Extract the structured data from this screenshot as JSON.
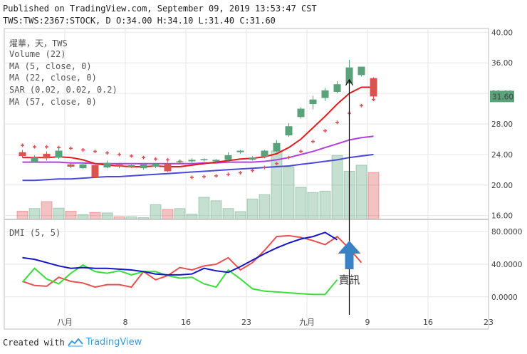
{
  "header": {
    "published": "Published on TradingView.com, September 09, 2019 13:53:47 CST",
    "symbol_line": "TWS:TWS:2367:STOCK, D O:34.00 H:34.10 L:31.40 C:31.60"
  },
  "legend": {
    "stock": "燿華，天，TWS",
    "volume": "Volume (22)",
    "ma5": "MA (5, close, 0)",
    "ma22": "MA (22, close, 0)",
    "sar": "SAR (0.02, 0.02, 0.2)",
    "ma57": "MA (57, close, 0)",
    "dmi": "DMI (5, 5)"
  },
  "annotation": {
    "text": "賣訊"
  },
  "footer": {
    "created_with": "Created with",
    "brand": "TradingView"
  },
  "colors": {
    "up": "#59a27a",
    "down": "#d9534f",
    "ma5": "#e31a1c",
    "ma22": "#b041e0",
    "ma57": "#4a4ad8",
    "sar": "#e0505a",
    "dmi_plus": "#e8504f",
    "dmi_minus": "#3cdc3c",
    "adx": "#1515c8",
    "arrow": "#3b82c4",
    "grid": "#e6e6e6",
    "last_price": "#59a27a"
  },
  "chart_data": [
    {
      "type": "candlestick",
      "title": "燿華，天，TWS",
      "ylim": [
        15.5,
        40.5
      ],
      "yticks": [
        16,
        20,
        24,
        28,
        32,
        36,
        40
      ],
      "ytick_labels": [
        "16.00",
        "20.00",
        "24.00",
        "28.00",
        "32.00",
        "36.00",
        "40.00"
      ],
      "last_price_label": "31.60",
      "last_price": 31.6,
      "xlim": [
        -1.5,
        38.5
      ],
      "xticks": [
        {
          "i": 3.5,
          "label": "八月"
        },
        {
          "i": 8.5,
          "label": "8"
        },
        {
          "i": 13.5,
          "label": "16"
        },
        {
          "i": 18.5,
          "label": "23"
        },
        {
          "i": 23.5,
          "label": "九月"
        },
        {
          "i": 28.5,
          "label": "9"
        },
        {
          "i": 33.5,
          "label": "16"
        },
        {
          "i": 38.5,
          "label": "23"
        }
      ],
      "candles": [
        {
          "o": 24.3,
          "h": 24.6,
          "c": 23.8,
          "l": 23.6
        },
        {
          "o": 23.0,
          "h": 23.9,
          "c": 23.6,
          "l": 22.9
        },
        {
          "o": 24.1,
          "h": 24.4,
          "c": 23.5,
          "l": 23.2
        },
        {
          "o": 23.6,
          "h": 24.8,
          "c": 24.5,
          "l": 23.4
        },
        {
          "o": 22.7,
          "h": 23.0,
          "c": 22.4,
          "l": 22.2
        },
        {
          "o": 22.2,
          "h": 22.9,
          "c": 22.7,
          "l": 22.1
        },
        {
          "o": 22.6,
          "h": 22.9,
          "c": 21.0,
          "l": 20.9
        },
        {
          "o": 22.3,
          "h": 23.2,
          "c": 22.9,
          "l": 22.2
        },
        {
          "o": 22.7,
          "h": 22.9,
          "c": 22.4,
          "l": 22.2
        },
        {
          "o": 22.4,
          "h": 22.7,
          "c": 22.6,
          "l": 22.2
        },
        {
          "o": 22.2,
          "h": 22.9,
          "c": 22.7,
          "l": 22.0
        },
        {
          "o": 22.4,
          "h": 22.9,
          "c": 22.8,
          "l": 22.2
        },
        {
          "o": 22.8,
          "h": 23.0,
          "c": 21.8,
          "l": 21.7
        },
        {
          "o": 23.0,
          "h": 23.3,
          "c": 23.1,
          "l": 22.9
        },
        {
          "o": 23.1,
          "h": 23.5,
          "c": 23.3,
          "l": 22.9
        },
        {
          "o": 23.3,
          "h": 23.5,
          "c": 23.4,
          "l": 23.1
        },
        {
          "o": 23.1,
          "h": 23.4,
          "c": 23.3,
          "l": 22.9
        },
        {
          "o": 23.3,
          "h": 24.3,
          "c": 23.9,
          "l": 23.2
        },
        {
          "o": 24.3,
          "h": 24.6,
          "c": 24.5,
          "l": 24.1
        },
        {
          "o": 23.3,
          "h": 23.8,
          "c": 23.6,
          "l": 23.2
        },
        {
          "o": 23.7,
          "h": 24.6,
          "c": 24.5,
          "l": 23.5
        },
        {
          "o": 24.4,
          "h": 25.9,
          "c": 25.5,
          "l": 24.3
        },
        {
          "o": 26.5,
          "h": 28.1,
          "c": 27.7,
          "l": 26.3
        },
        {
          "o": 28.9,
          "h": 30.2,
          "c": 30.0,
          "l": 28.7
        },
        {
          "o": 30.6,
          "h": 31.7,
          "c": 31.2,
          "l": 29.9
        },
        {
          "o": 31.4,
          "h": 32.7,
          "c": 32.4,
          "l": 31.0
        },
        {
          "o": 32.2,
          "h": 33.6,
          "c": 33.2,
          "l": 32.0
        },
        {
          "o": 33.3,
          "h": 36.4,
          "c": 35.4,
          "l": 33.1
        },
        {
          "o": 34.4,
          "h": 35.5,
          "c": 35.5,
          "l": 34.2
        },
        {
          "o": 34.0,
          "h": 34.1,
          "c": 31.6,
          "l": 31.4
        }
      ],
      "ma5": [
        23.6,
        23.6,
        23.6,
        23.7,
        23.6,
        23.3,
        22.8,
        22.6,
        22.5,
        22.4,
        22.4,
        22.5,
        22.4,
        22.4,
        22.6,
        22.8,
        23.0,
        23.2,
        23.4,
        23.5,
        23.7,
        24.1,
        24.9,
        26.0,
        27.5,
        29.0,
        30.6,
        32.0,
        32.8,
        32.8
      ],
      "ma22": [
        23.0,
        23.0,
        23.0,
        23.0,
        22.9,
        22.9,
        22.8,
        22.8,
        22.8,
        22.8,
        22.8,
        22.8,
        22.8,
        22.8,
        22.8,
        22.9,
        22.9,
        23.0,
        23.0,
        23.0,
        23.1,
        23.3,
        23.6,
        24.0,
        24.4,
        24.9,
        25.4,
        25.9,
        26.2,
        26.4
      ],
      "ma57": [
        20.6,
        20.6,
        20.7,
        20.8,
        20.8,
        20.9,
        21.0,
        21.1,
        21.1,
        21.2,
        21.3,
        21.4,
        21.5,
        21.6,
        21.7,
        21.8,
        21.9,
        22.0,
        22.1,
        22.2,
        22.3,
        22.4,
        22.5,
        22.7,
        22.9,
        23.1,
        23.3,
        23.6,
        23.8,
        24.0
      ],
      "sar": [
        25.2,
        25.0,
        25.0,
        24.9,
        24.8,
        24.6,
        24.4,
        24.2,
        24.0,
        23.8,
        23.6,
        23.4,
        23.3,
        23.1,
        21.0,
        21.1,
        21.2,
        21.4,
        21.6,
        21.9,
        22.3,
        22.8,
        23.6,
        24.4,
        25.7,
        27.1,
        28.2,
        29.4,
        30.4,
        31.2
      ],
      "volume": [
        95,
        125,
        205,
        130,
        95,
        55,
        80,
        75,
        30,
        30,
        20,
        170,
        115,
        125,
        60,
        255,
        215,
        125,
        90,
        235,
        285,
        790,
        605,
        370,
        310,
        325,
        735,
        555,
        625,
        540
      ],
      "volume_max_scale": 2200
    },
    {
      "type": "line",
      "title": "DMI (5, 5)",
      "ylim": [
        -0.22,
        0.95
      ],
      "yticks": [
        0,
        0.4,
        0.8
      ],
      "ytick_labels": [
        "0.0000",
        "40.0000",
        "80.0000"
      ],
      "series": [
        {
          "name": "+DI",
          "values": [
            0.19,
            0.14,
            0.13,
            0.24,
            0.19,
            0.17,
            0.12,
            0.15,
            0.15,
            0.12,
            0.31,
            0.21,
            0.26,
            0.36,
            0.33,
            0.38,
            0.4,
            0.48,
            0.33,
            0.42,
            0.57,
            0.74,
            0.75,
            0.73,
            0.69,
            0.64,
            0.74,
            0.59,
            0.42,
            null
          ]
        },
        {
          "name": "-DI",
          "values": [
            0.18,
            0.35,
            0.22,
            0.16,
            0.29,
            0.39,
            0.31,
            0.29,
            0.32,
            0.27,
            0.31,
            0.31,
            0.26,
            0.23,
            0.24,
            0.16,
            0.12,
            0.33,
            0.22,
            0.1,
            0.07,
            0.06,
            0.05,
            0.04,
            0.03,
            0.03,
            0.21,
            null,
            null,
            null
          ]
        },
        {
          "name": "ADX",
          "values": [
            0.48,
            0.46,
            0.42,
            0.38,
            0.35,
            0.36,
            0.35,
            0.35,
            0.34,
            0.33,
            0.31,
            0.28,
            0.27,
            0.27,
            0.28,
            0.35,
            0.32,
            0.3,
            0.37,
            0.45,
            0.53,
            0.6,
            0.66,
            0.71,
            0.74,
            0.79,
            0.7,
            null,
            null,
            null
          ]
        }
      ]
    }
  ]
}
